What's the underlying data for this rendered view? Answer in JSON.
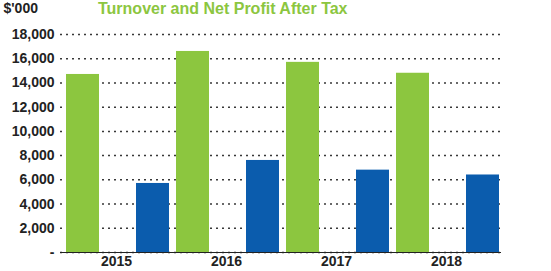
{
  "chart_data": {
    "type": "bar",
    "title": "Turnover and Net Profit After Tax",
    "y_label": "$'000",
    "categories": [
      "2015",
      "2016",
      "2017",
      "2018"
    ],
    "series": [
      {
        "color": "#8cc63f",
        "values": [
          14700,
          16600,
          15700,
          14800
        ]
      },
      {
        "color": "#0b5cad",
        "values": [
          5700,
          7600,
          6800,
          6400
        ]
      }
    ],
    "ylim": [
      0,
      18000
    ],
    "yticks": [
      {
        "value": 0,
        "label": "-"
      },
      {
        "value": 2000,
        "label": "2,000"
      },
      {
        "value": 4000,
        "label": "4,000"
      },
      {
        "value": 6000,
        "label": "6,000"
      },
      {
        "value": 8000,
        "label": "8,000"
      },
      {
        "value": 10000,
        "label": "10,000"
      },
      {
        "value": 12000,
        "label": "12,000"
      },
      {
        "value": 14000,
        "label": "14,000"
      },
      {
        "value": 16000,
        "label": "16,000"
      },
      {
        "value": 18000,
        "label": "18,000"
      }
    ],
    "grid": true
  }
}
